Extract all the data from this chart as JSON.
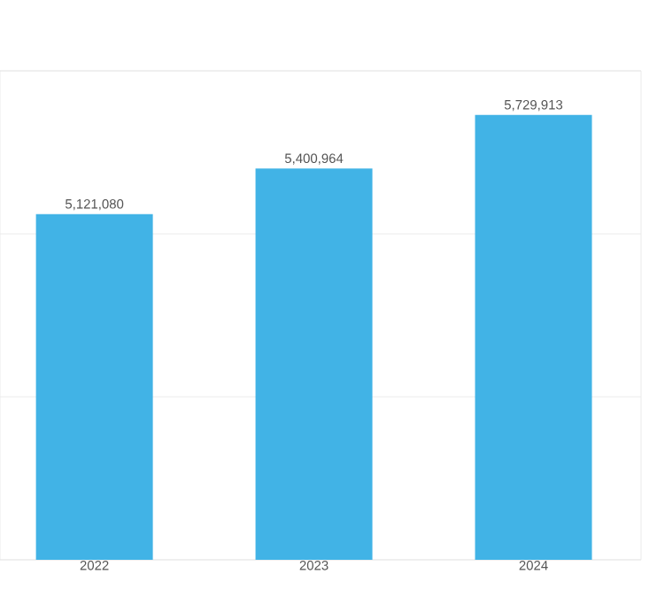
{
  "chart_data": {
    "type": "bar",
    "categories": [
      "2022",
      "2023",
      "2024"
    ],
    "values": [
      5121080,
      5400964,
      5729913
    ],
    "value_labels": [
      "5,121,080",
      "5,400,964",
      "5,729,913"
    ],
    "color": "#41b3e6",
    "ylim": [
      3000000,
      6000000
    ],
    "yticks": [
      {
        "value": 3000000,
        "label": null
      },
      {
        "value": 4000000,
        "label": null
      },
      {
        "value": 5000000,
        "label": null
      },
      {
        "value": 6000000,
        "label": null
      }
    ],
    "grid": "y",
    "tick_labels": "x"
  }
}
